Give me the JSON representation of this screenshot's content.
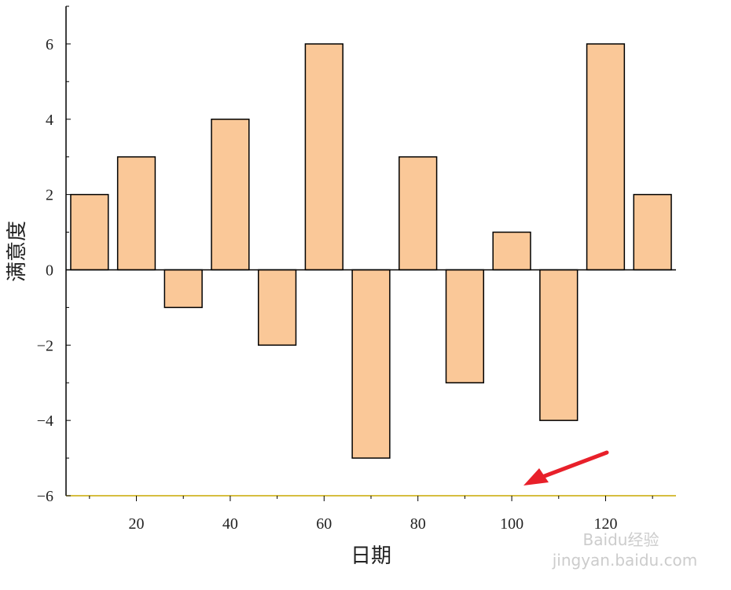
{
  "chart_data": {
    "type": "bar",
    "x_label": "日期",
    "y_label": "满意度",
    "x": [
      10,
      20,
      30,
      40,
      50,
      60,
      70,
      80,
      90,
      100,
      110,
      120,
      130
    ],
    "values": [
      2,
      3,
      -1,
      4,
      -2,
      6,
      -5,
      3,
      -3,
      1,
      -4,
      6,
      2
    ],
    "bar_width": 8,
    "color": "#fac898",
    "edge_color": "#000000",
    "xlim": [
      5,
      135
    ],
    "xticks": [
      20,
      40,
      60,
      80,
      100,
      120
    ],
    "ylim": [
      -6,
      7
    ],
    "yticks": [
      {
        "value": -6,
        "label": "−6"
      },
      {
        "value": -4,
        "label": "−4"
      },
      {
        "value": -2,
        "label": "−2"
      },
      0,
      2,
      4,
      6
    ],
    "watermark": [
      "Baidu经验",
      "jingyan.baidu.com"
    ]
  }
}
